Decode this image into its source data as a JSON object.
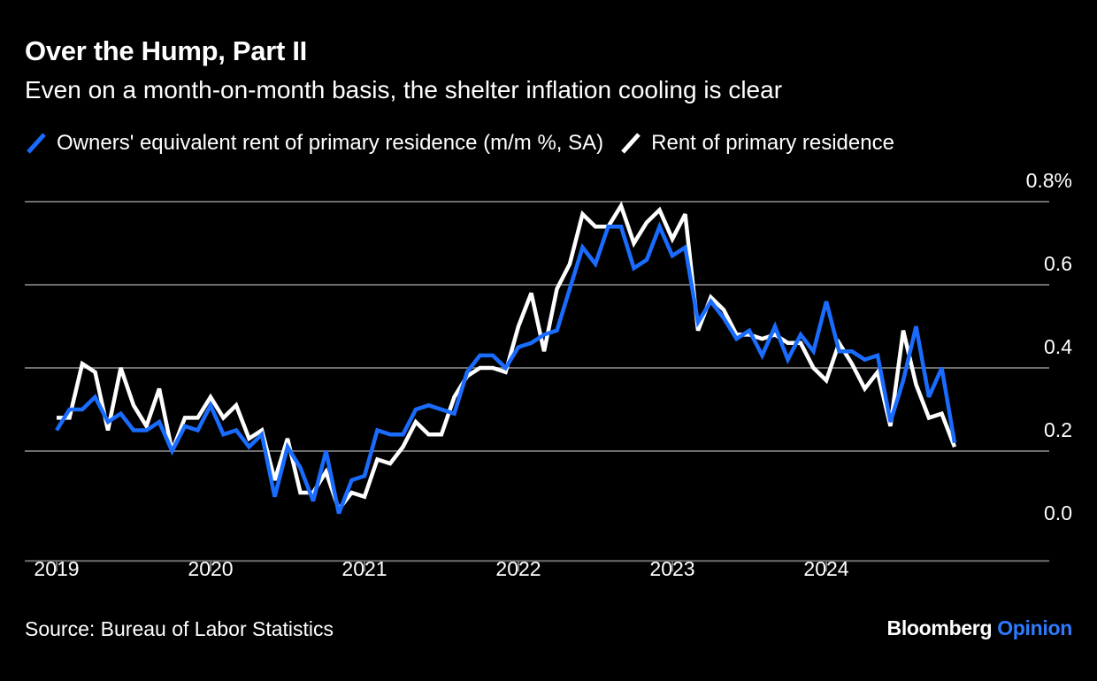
{
  "header": {
    "title": "Over the Hump, Part II",
    "subtitle": "Even on a month-on-month basis, the shelter inflation cooling is clear"
  },
  "footer": {
    "source": "Source: Bureau of Labor Statistics",
    "brand_main": "Bloomberg",
    "brand_accent": "Opinion"
  },
  "colors": {
    "background": "#000000",
    "oer": "#1a6cff",
    "rent": "#ffffff",
    "grid": "#6e6e6e",
    "brand_accent": "#2e7bff"
  },
  "chart_data": {
    "type": "line",
    "title": "Over the Hump, Part II",
    "subtitle": "Even on a month-on-month basis, the shelter inflation cooling is clear",
    "x_unit": "month",
    "x_start": "2019-01",
    "x_end": "2024-12",
    "x_tick_labels": [
      "2019",
      "2020",
      "2021",
      "2022",
      "2023",
      "2024"
    ],
    "y_tick_labels": [
      "0.0",
      "0.2",
      "0.4",
      "0.6",
      "0.8%"
    ],
    "y_ticks": [
      0,
      0.2,
      0.4,
      0.6,
      0.8
    ],
    "ylim": [
      -0.06,
      0.8
    ],
    "grid": true,
    "legend_position": "top",
    "series": [
      {
        "name": "Owners' equivalent rent of primary residence (m/m %, SA)",
        "color": "#1a6cff",
        "values": [
          0.25,
          0.3,
          0.3,
          0.33,
          0.27,
          0.29,
          0.25,
          0.25,
          0.27,
          0.2,
          0.26,
          0.25,
          0.31,
          0.24,
          0.25,
          0.21,
          0.24,
          0.09,
          0.21,
          0.16,
          0.08,
          0.2,
          0.05,
          0.13,
          0.14,
          0.25,
          0.24,
          0.24,
          0.3,
          0.31,
          0.3,
          0.29,
          0.39,
          0.43,
          0.43,
          0.4,
          0.45,
          0.46,
          0.48,
          0.49,
          0.59,
          0.69,
          0.65,
          0.74,
          0.74,
          0.64,
          0.66,
          0.74,
          0.67,
          0.69,
          0.51,
          0.56,
          0.52,
          0.47,
          0.49,
          0.43,
          0.5,
          0.42,
          0.48,
          0.44,
          0.56,
          0.44,
          0.44,
          0.42,
          0.43,
          0.27,
          0.37,
          0.5,
          0.33,
          0.4,
          0.22
        ]
      },
      {
        "name": "Rent of primary residence",
        "color": "#ffffff",
        "values": [
          0.28,
          0.28,
          0.41,
          0.39,
          0.25,
          0.4,
          0.31,
          0.26,
          0.35,
          0.2,
          0.28,
          0.28,
          0.33,
          0.28,
          0.31,
          0.23,
          0.25,
          0.13,
          0.23,
          0.1,
          0.1,
          0.15,
          0.06,
          0.1,
          0.09,
          0.18,
          0.17,
          0.21,
          0.27,
          0.24,
          0.24,
          0.33,
          0.38,
          0.4,
          0.4,
          0.39,
          0.5,
          0.58,
          0.44,
          0.59,
          0.65,
          0.77,
          0.74,
          0.74,
          0.79,
          0.7,
          0.75,
          0.78,
          0.71,
          0.77,
          0.49,
          0.57,
          0.54,
          0.48,
          0.48,
          0.47,
          0.48,
          0.46,
          0.46,
          0.4,
          0.37,
          0.46,
          0.41,
          0.35,
          0.39,
          0.26,
          0.49,
          0.36,
          0.28,
          0.29,
          0.21
        ]
      }
    ]
  }
}
